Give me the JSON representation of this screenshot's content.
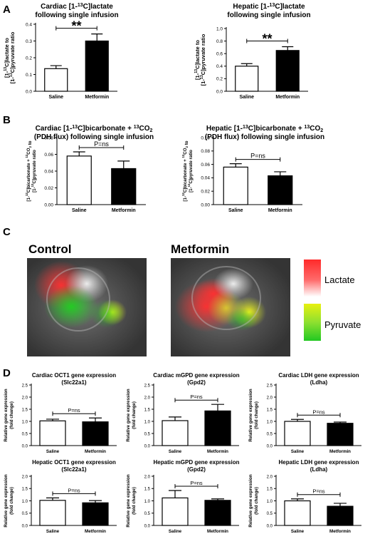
{
  "panel_letters": {
    "a": "A",
    "b": "B",
    "c": "C",
    "d": "D"
  },
  "panel_c": {
    "control_label": "Control",
    "metformin_label": "Metformin",
    "legend": {
      "lactate": "Lactate",
      "pyruvate": "Pyruvate"
    },
    "colors": {
      "lactate": "#ff2a2a",
      "pyruvate_yellow": "#e8f010",
      "pyruvate_green": "#22c822"
    }
  },
  "bar_colors": {
    "saline": "#ffffff",
    "metformin": "#000000"
  },
  "chart_data": [
    {
      "id": "a1",
      "type": "bar",
      "title": [
        "Cardiac [1-13C]lactate",
        "following single infusion"
      ],
      "ylabel": [
        "[1-13C]lactate to",
        "[1-13C]pyruvate ratio"
      ],
      "categories": [
        "Saline",
        "Metformin"
      ],
      "values": [
        0.135,
        0.3
      ],
      "errors": [
        0.018,
        0.042
      ],
      "ylim": [
        0,
        0.4
      ],
      "yticks": [
        "0.0",
        "0.1",
        "0.2",
        "0.3",
        "0.4"
      ],
      "annotation": "**"
    },
    {
      "id": "a2",
      "type": "bar",
      "title": [
        "Hepatic [1-13C]lactate",
        "following single infusion"
      ],
      "ylabel": [
        "[1-13C]lactate to",
        "[1-13C]pyruvate ratio"
      ],
      "categories": [
        "Saline",
        "Metformin"
      ],
      "values": [
        0.4,
        0.65
      ],
      "errors": [
        0.04,
        0.06
      ],
      "ylim": [
        0,
        1.0
      ],
      "yticks": [
        "0.0",
        "0.2",
        "0.4",
        "0.6",
        "0.8",
        "1.0"
      ],
      "annotation": "**"
    },
    {
      "id": "b1",
      "type": "bar",
      "title": [
        "Cardiac [1-13C]bicarbonate + 13CO2",
        "(PDH flux) following single infusion"
      ],
      "ylabel": [
        "[1-13C]bicarbonate + 13CO2 to",
        "[1-13C]pyruvate ratio"
      ],
      "categories": [
        "Saline",
        "Metformin"
      ],
      "values": [
        0.058,
        0.043
      ],
      "errors": [
        0.005,
        0.009
      ],
      "ylim": [
        0,
        0.08
      ],
      "yticks": [
        "0.00",
        "0.02",
        "0.04",
        "0.06",
        "0.08"
      ],
      "annotation": "P=ns"
    },
    {
      "id": "b2",
      "type": "bar",
      "title": [
        "Hepatic [1-13C]bicarbonate + 13CO2",
        "(PDH flux) following single infusion"
      ],
      "ylabel": [
        "[1-13C]bicarbonate + 13CO2 to",
        "[1-13C]pyruvate ratio"
      ],
      "categories": [
        "Saline",
        "Metformin"
      ],
      "values": [
        0.056,
        0.043
      ],
      "errors": [
        0.005,
        0.006
      ],
      "ylim": [
        0,
        0.1
      ],
      "yticks": [
        "0.00",
        "0.02",
        "0.04",
        "0.06",
        "0.08",
        "0.10"
      ],
      "annotation": "P=ns"
    },
    {
      "id": "d1",
      "type": "bar",
      "title": [
        "Cardiac OCT1 gene expression",
        "(Slc22a1)"
      ],
      "ylabel": [
        "Relative gene expression",
        "(fold change)"
      ],
      "categories": [
        "Saline",
        "Metformin"
      ],
      "values": [
        1.02,
        0.98
      ],
      "errors": [
        0.07,
        0.16
      ],
      "ylim": [
        0,
        2.5
      ],
      "yticks": [
        "0.0",
        "0.5",
        "1.0",
        "1.5",
        "2.0",
        "2.5"
      ],
      "annotation": "P=ns"
    },
    {
      "id": "d2",
      "type": "bar",
      "title": [
        "Cardiac mGPD gene expression",
        "(Gpd2)"
      ],
      "ylabel": [
        "Relative gene expression",
        "(fold change)"
      ],
      "categories": [
        "Saline",
        "Metformin"
      ],
      "values": [
        1.03,
        1.43
      ],
      "errors": [
        0.15,
        0.27
      ],
      "ylim": [
        0,
        2.5
      ],
      "yticks": [
        "0.0",
        "0.5",
        "1.0",
        "1.5",
        "2.0",
        "2.5"
      ],
      "annotation": "P=ns"
    },
    {
      "id": "d3",
      "type": "bar",
      "title": [
        "Cardiac LDH gene expression",
        "(Ldha)"
      ],
      "ylabel": [
        "Relative gene expression",
        "(fold change)"
      ],
      "categories": [
        "Saline",
        "Metformin"
      ],
      "values": [
        1.0,
        0.92
      ],
      "errors": [
        0.08,
        0.05
      ],
      "ylim": [
        0,
        2.5
      ],
      "yticks": [
        "0.0",
        "0.5",
        "1.0",
        "1.5",
        "2.0",
        "2.5"
      ],
      "annotation": "P=ns"
    },
    {
      "id": "d4",
      "type": "bar",
      "title": [
        "Hepatic OCT1 gene expression",
        "(Slc22a1)"
      ],
      "ylabel": [
        "Relative gene expression",
        "(fold change)"
      ],
      "categories": [
        "Saline",
        "Metformin"
      ],
      "values": [
        1.02,
        0.92
      ],
      "errors": [
        0.1,
        0.09
      ],
      "ylim": [
        0,
        2.0
      ],
      "yticks": [
        "0.0",
        "0.5",
        "1.0",
        "1.5",
        "2.0"
      ],
      "annotation": "P=ns"
    },
    {
      "id": "d5",
      "type": "bar",
      "title": [
        "Hepatic mGPD gene expression",
        "(Gpd2)"
      ],
      "ylabel": [
        "Relative gene expression",
        "(fold change)"
      ],
      "categories": [
        "Saline",
        "Metformin"
      ],
      "values": [
        1.12,
        1.02
      ],
      "errors": [
        0.3,
        0.06
      ],
      "ylim": [
        0,
        2.0
      ],
      "yticks": [
        "0.0",
        "0.5",
        "1.0",
        "1.5",
        "2.0"
      ],
      "annotation": "P=ns"
    },
    {
      "id": "d6",
      "type": "bar",
      "title": [
        "Hepatic LDH gene expression",
        "(Ldha)"
      ],
      "ylabel": [
        "Relative gene expression",
        "(fold change)"
      ],
      "categories": [
        "Saline",
        "Metformin"
      ],
      "values": [
        1.0,
        0.78
      ],
      "errors": [
        0.08,
        0.12
      ],
      "ylim": [
        0,
        2.0
      ],
      "yticks": [
        "0.0",
        "0.5",
        "1.0",
        "1.5",
        "2.0"
      ],
      "annotation": "P=ns"
    }
  ]
}
